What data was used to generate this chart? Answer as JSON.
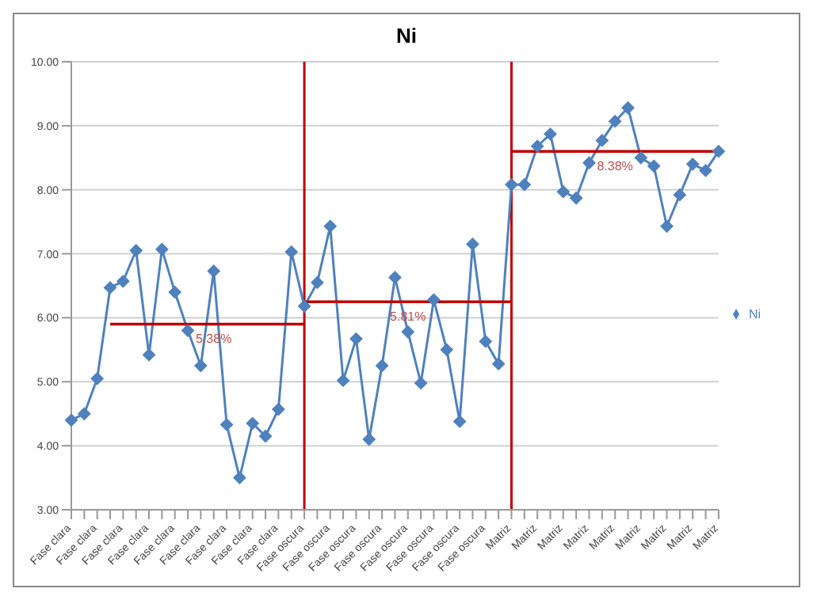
{
  "chart_data": {
    "type": "line",
    "title": "Ni",
    "categories": [
      "Fase clara",
      null,
      "Fase clara",
      null,
      "Fase clara",
      null,
      "Fase clara",
      null,
      "Fase clara",
      null,
      "Fase clara",
      null,
      "Fase clara",
      null,
      "Fase clara",
      null,
      "Fase clara",
      null,
      "Fase oscura",
      null,
      "Fase oscura",
      null,
      "Fase oscura",
      null,
      "Fase oscura",
      null,
      "Fase oscura",
      null,
      "Fase oscura",
      null,
      "Fase oscura",
      null,
      "Fase oscura",
      null,
      "Matriz",
      null,
      "Matriz",
      null,
      "Matriz",
      null,
      "Matriz",
      null,
      "Matriz",
      null,
      "Matriz",
      null,
      "Matriz",
      null,
      "Matriz",
      null,
      "Matriz"
    ],
    "series": [
      {
        "name": "Ni",
        "color": "#4f81bd",
        "marker": "diamond",
        "values": [
          4.4,
          4.5,
          5.05,
          6.47,
          6.57,
          7.05,
          5.42,
          7.07,
          6.4,
          5.8,
          5.25,
          6.73,
          4.33,
          3.5,
          4.35,
          4.15,
          4.57,
          7.03,
          6.18,
          6.55,
          7.43,
          5.02,
          5.67,
          4.1,
          5.25,
          6.63,
          5.78,
          4.98,
          6.28,
          5.5,
          4.38,
          7.15,
          5.63,
          5.28,
          8.08,
          8.08,
          8.68,
          8.87,
          7.97,
          7.87,
          8.42,
          8.77,
          9.07,
          9.28,
          8.5,
          8.37,
          7.43,
          7.92,
          8.4,
          8.3,
          8.6
        ]
      },
      {
        "color": "#c00000",
        "marker": "none",
        "values": [
          null,
          null,
          null,
          5.9,
          5.9,
          5.9,
          5.9,
          5.9,
          5.9,
          5.9,
          5.9,
          5.9,
          5.9,
          5.9,
          5.9,
          5.9,
          5.9,
          5.9,
          5.9,
          null,
          null,
          null,
          null,
          null,
          null,
          null,
          null,
          null,
          null,
          null,
          null,
          null,
          null,
          null,
          null,
          null,
          null,
          null,
          null,
          null,
          null,
          null,
          null,
          null,
          null,
          null,
          null,
          null,
          null,
          null,
          null
        ]
      },
      {
        "color": "#c00000",
        "marker": "none",
        "values": [
          null,
          null,
          null,
          null,
          null,
          null,
          null,
          null,
          null,
          null,
          null,
          null,
          null,
          null,
          null,
          null,
          null,
          null,
          6.25,
          6.25,
          6.25,
          6.25,
          6.25,
          6.25,
          6.25,
          6.25,
          6.25,
          6.25,
          6.25,
          6.25,
          6.25,
          6.25,
          6.25,
          6.25,
          6.25,
          null,
          null,
          null,
          null,
          null,
          null,
          null,
          null,
          null,
          null,
          null,
          null,
          null,
          null,
          null,
          null
        ]
      },
      {
        "color": "#c00000",
        "marker": "none",
        "values": [
          null,
          null,
          null,
          null,
          null,
          null,
          null,
          null,
          null,
          null,
          null,
          null,
          null,
          null,
          null,
          null,
          null,
          null,
          null,
          null,
          null,
          null,
          null,
          null,
          null,
          null,
          null,
          null,
          null,
          null,
          null,
          null,
          null,
          null,
          8.6,
          8.6,
          8.6,
          8.6,
          8.6,
          8.6,
          8.6,
          8.6,
          8.6,
          8.6,
          8.6,
          8.6,
          8.6,
          8.6,
          8.6,
          8.6,
          8.6
        ]
      }
    ],
    "annotations": [
      "5.38%",
      "5.81%",
      "8.38%"
    ],
    "ref_lines": [
      {
        "axis": "x",
        "value": "Fase oscura",
        "color": "#c00000"
      },
      {
        "axis": "x",
        "value": "Matriz",
        "color": "#c00000"
      }
    ],
    "ylim": [
      3,
      10
    ],
    "yticks": [
      {
        "value": 3,
        "label": "3.00"
      },
      {
        "value": 4,
        "label": "4.00"
      },
      {
        "value": 5,
        "label": "5.00"
      },
      {
        "value": 6,
        "label": "6.00"
      },
      {
        "value": 7,
        "label": "7.00"
      },
      {
        "value": 8,
        "label": "8.00"
      },
      {
        "value": 9,
        "label": "9.00"
      },
      {
        "value": 10,
        "label": "10.00"
      }
    ],
    "grid": "y",
    "legend": "right"
  }
}
